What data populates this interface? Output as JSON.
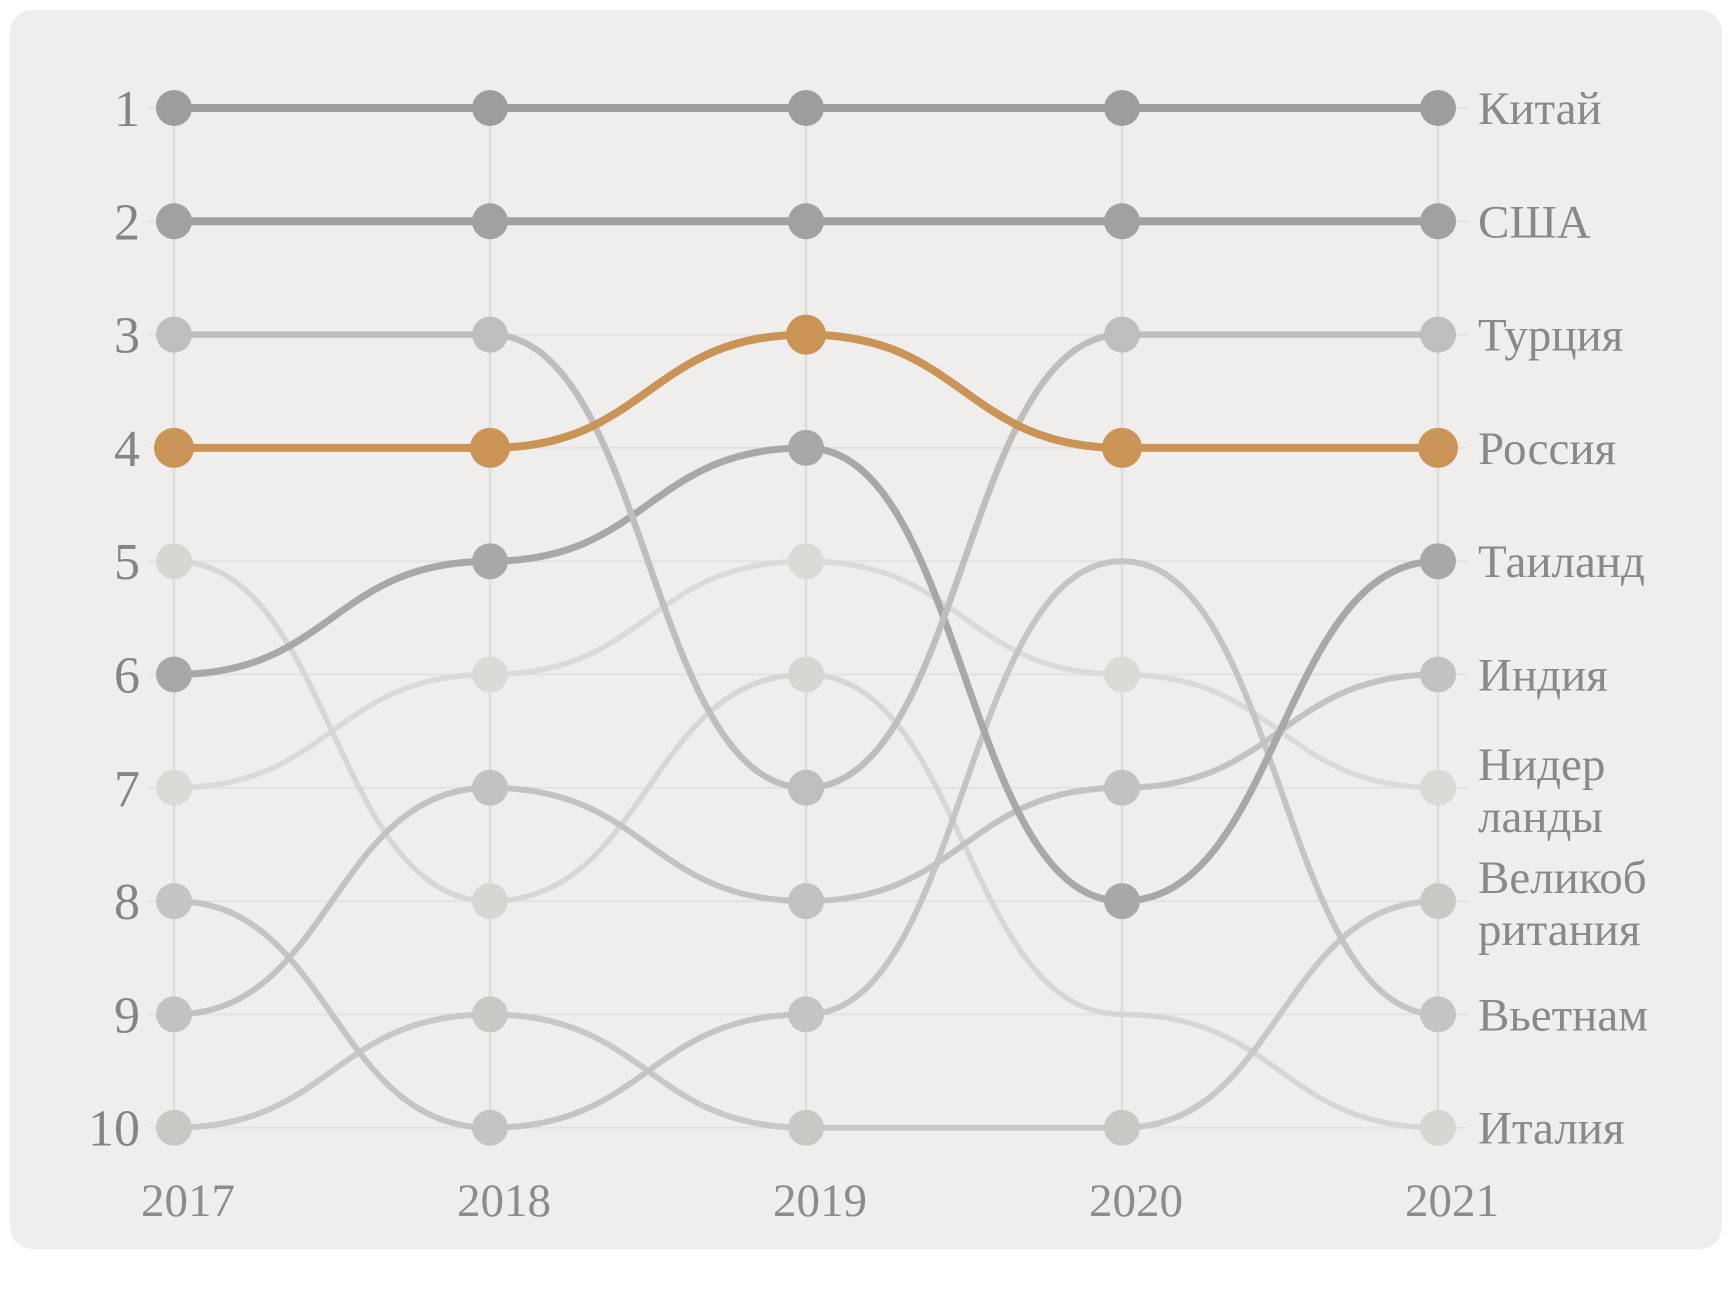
{
  "chart_data": {
    "type": "line",
    "subtype": "bump-rank-chart",
    "title": "",
    "x": [
      2017,
      2018,
      2019,
      2020,
      2021
    ],
    "x_tick_labels": [
      "2017",
      "2018",
      "2019",
      "2020",
      "2021"
    ],
    "rank_axis": {
      "min": 1,
      "max": 10,
      "tick_labels": [
        "1",
        "2",
        "3",
        "4",
        "5",
        "6",
        "7",
        "8",
        "9",
        "10"
      ],
      "direction": "1 is best, shown at top"
    },
    "legend_position": "right, label at each line end",
    "grid": "horizontal rank gridlines and vertical year columns",
    "background_color": "#efeeed",
    "page_color": "#ffffff",
    "highlight_color": "#c99455",
    "grid_color": "#e3e2e0",
    "column_color": "#dddcda",
    "rank_text_color": "#868583",
    "year_text_color": "#8d8c8a",
    "label_text_color": "#8a8987",
    "series": [
      {
        "key": "netherlands",
        "label": "Нидерланды",
        "label_lines": [
          "Нидер",
          "ланды"
        ],
        "color": "#dbdad7",
        "width": 5.5,
        "ranks": [
          7,
          6,
          5,
          6,
          7
        ]
      },
      {
        "key": "italy",
        "label": "Италия",
        "label_lines": [
          "Италия"
        ],
        "color": "#d7d6d3",
        "width": 5.5,
        "ranks": [
          5,
          8,
          6,
          9,
          10
        ]
      },
      {
        "key": "uk",
        "label": "Великобритания",
        "label_lines": [
          "Великоб",
          "ритания"
        ],
        "color": "#c9c8c5",
        "width": 6,
        "ranks": [
          10,
          9,
          10,
          10,
          8
        ]
      },
      {
        "key": "vietnam",
        "label": "Вьетнам",
        "label_lines": [
          "Вьетнам"
        ],
        "color": "#c5c4c2",
        "width": 6,
        "ranks": [
          8,
          10,
          9,
          5,
          9
        ]
      },
      {
        "key": "india",
        "label": "Индия",
        "label_lines": [
          "Индия"
        ],
        "color": "#c3c2c0",
        "width": 6,
        "ranks": [
          9,
          7,
          8,
          7,
          6
        ]
      },
      {
        "key": "thailand",
        "label": "Таиланд",
        "label_lines": [
          "Таиланд"
        ],
        "color": "#a9a8a6",
        "width": 7,
        "ranks": [
          6,
          5,
          4,
          8,
          5
        ]
      },
      {
        "key": "turkey",
        "label": "Турция",
        "label_lines": [
          "Турция"
        ],
        "color": "#bfbebc",
        "width": 6.5,
        "ranks": [
          3,
          3,
          7,
          3,
          3
        ]
      },
      {
        "key": "usa",
        "label": "США",
        "label_lines": [
          "США"
        ],
        "color": "#a1a1a1",
        "width": 8,
        "ranks": [
          2,
          2,
          2,
          2,
          2
        ]
      },
      {
        "key": "china",
        "label": "Китай",
        "label_lines": [
          "Китай"
        ],
        "color": "#9d9d9d",
        "width": 8,
        "ranks": [
          1,
          1,
          1,
          1,
          1
        ]
      },
      {
        "key": "russia",
        "label": "Россия",
        "label_lines": [
          "Россия"
        ],
        "color": "#c99455",
        "width": 8,
        "ranks": [
          4,
          4,
          3,
          4,
          4
        ],
        "highlight": true
      }
    ],
    "hidden_dots": [
      {
        "series": "vietnam",
        "year": 2020
      },
      {
        "series": "italy",
        "year": 2020
      }
    ]
  }
}
